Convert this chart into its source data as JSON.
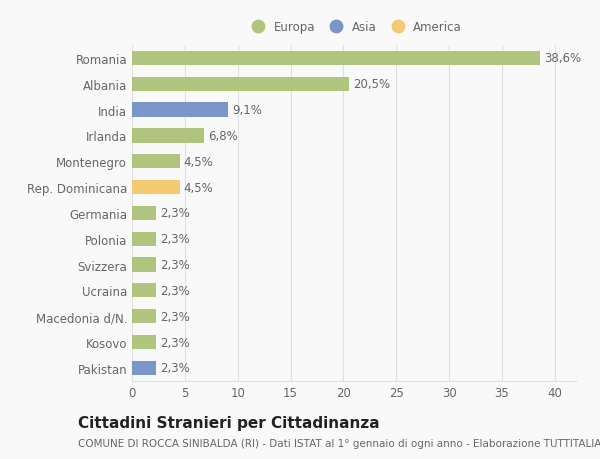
{
  "categories": [
    "Pakistan",
    "Kosovo",
    "Macedonia d/N.",
    "Ucraina",
    "Svizzera",
    "Polonia",
    "Germania",
    "Rep. Dominicana",
    "Montenegro",
    "Irlanda",
    "India",
    "Albania",
    "Romania"
  ],
  "values": [
    2.3,
    2.3,
    2.3,
    2.3,
    2.3,
    2.3,
    2.3,
    4.5,
    4.5,
    6.8,
    9.1,
    20.5,
    38.6
  ],
  "labels": [
    "2,3%",
    "2,3%",
    "2,3%",
    "2,3%",
    "2,3%",
    "2,3%",
    "2,3%",
    "4,5%",
    "4,5%",
    "6,8%",
    "9,1%",
    "20,5%",
    "38,6%"
  ],
  "colors": [
    "#7b96c8",
    "#b0c47d",
    "#b0c47d",
    "#b0c47d",
    "#b0c47d",
    "#b0c47d",
    "#b0c47d",
    "#f2ca72",
    "#b0c47d",
    "#b0c47d",
    "#7b96c8",
    "#b0c47d",
    "#b0c47d"
  ],
  "legend": [
    {
      "label": "Europa",
      "color": "#b0c47d"
    },
    {
      "label": "Asia",
      "color": "#7b96c8"
    },
    {
      "label": "America",
      "color": "#f2ca72"
    }
  ],
  "xlim": [
    0,
    42
  ],
  "xticks": [
    0,
    5,
    10,
    15,
    20,
    25,
    30,
    35,
    40
  ],
  "title": "Cittadini Stranieri per Cittadinanza",
  "subtitle": "COMUNE DI ROCCA SINIBALDA (RI) - Dati ISTAT al 1° gennaio di ogni anno - Elaborazione TUTTITALIA.IT",
  "background_color": "#f9f9f9",
  "bar_height": 0.55,
  "label_fontsize": 8.5,
  "tick_fontsize": 8.5,
  "title_fontsize": 11,
  "subtitle_fontsize": 7.5,
  "grid_color": "#e0e0e0",
  "text_color": "#666666"
}
